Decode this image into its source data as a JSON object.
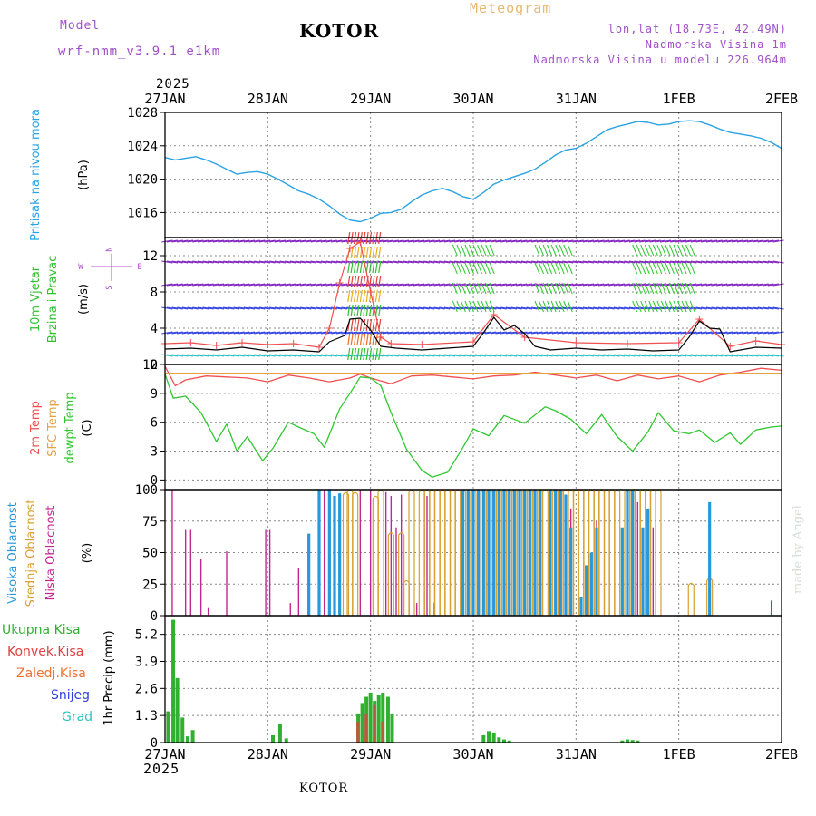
{
  "header": {
    "meteogram_title": "Meteogram",
    "model_label": "Model",
    "model_name": "wrf-nmm_v3.9.1 e1km",
    "station": "KOTOR",
    "lonlat": "lon,lat (18.73E, 42.49N)",
    "altitude": "Nadmorska Visina 1m",
    "model_altitude": "Nadmorska Visina u modelu 226.964m",
    "year_top": "2025",
    "year_bottom": "2025",
    "footer_station": "KOTOR",
    "credit": "made by Angel"
  },
  "colors": {
    "pressure": "#29a3e3",
    "temp2m": "#f05050",
    "sfc": "#e8a040",
    "dewpt": "#30c830",
    "high_cloud": "#2898d8",
    "mid_cloud": "#d8a030",
    "low_cloud": "#c02890",
    "total_precip": "#30b030",
    "conv_precip": "#e04040",
    "frozen": "#f07030",
    "snow": "#3040e0",
    "hail": "#30c0c0",
    "wind_compass": "#b050d0",
    "wind_speed_line": "#000000"
  },
  "chart_data": [
    {
      "type": "line",
      "panel": "pressure",
      "ylabel": [
        "Pritisak na nivou mora",
        "(hPa)"
      ],
      "xticks": [
        "27JAN",
        "28JAN",
        "29JAN",
        "30JAN",
        "31JAN",
        "1FEB",
        "2FEB"
      ],
      "ylim": [
        1013,
        1028
      ],
      "yticks": [
        1016,
        1020,
        1024,
        1028
      ],
      "grid": true,
      "series": [
        {
          "name": "Pritisak na nivou mora",
          "x": [
            0,
            0.1,
            0.2,
            0.3,
            0.4,
            0.5,
            0.6,
            0.7,
            0.8,
            0.9,
            1.0,
            1.1,
            1.2,
            1.3,
            1.4,
            1.5,
            1.6,
            1.7,
            1.8,
            1.9,
            2.0,
            2.1,
            2.2,
            2.3,
            2.4,
            2.5,
            2.6,
            2.7,
            2.8,
            2.9,
            3.0,
            3.1,
            3.2,
            3.3,
            3.4,
            3.5,
            3.6,
            3.7,
            3.8,
            3.9,
            4.0,
            4.1,
            4.2,
            4.3,
            4.4,
            4.5,
            4.6,
            4.7,
            4.8,
            4.9,
            5.0,
            5.1,
            5.2,
            5.3,
            5.4,
            5.5,
            5.6,
            5.7,
            5.8,
            5.9,
            6.0
          ],
          "y": [
            1022.6,
            1022.3,
            1022.5,
            1022.7,
            1022.3,
            1021.8,
            1021.2,
            1020.6,
            1020.8,
            1020.9,
            1020.6,
            1020.0,
            1019.3,
            1018.6,
            1018.2,
            1017.6,
            1016.8,
            1015.8,
            1015.1,
            1014.9,
            1015.3,
            1015.9,
            1016.0,
            1016.4,
            1017.3,
            1018.1,
            1018.6,
            1018.9,
            1018.5,
            1017.9,
            1017.6,
            1018.4,
            1019.4,
            1019.9,
            1020.3,
            1020.7,
            1021.2,
            1022.0,
            1022.9,
            1023.5,
            1023.7,
            1024.3,
            1025.1,
            1025.9,
            1026.3,
            1026.6,
            1026.9,
            1026.8,
            1026.5,
            1026.6,
            1026.9,
            1027.0,
            1026.9,
            1026.5,
            1026.0,
            1025.6,
            1025.4,
            1025.2,
            1024.9,
            1024.4,
            1023.7
          ]
        }
      ]
    },
    {
      "type": "line",
      "panel": "wind",
      "ylabel": [
        "10m Vjetar",
        "Brzina i Pravac",
        "(m/s)"
      ],
      "compass": {
        "north": "N",
        "south": "S",
        "west": "W",
        "east": "E"
      },
      "ylim": [
        0,
        14
      ],
      "yticks": [
        0,
        4,
        8,
        12
      ],
      "grid": true,
      "arrow_rows_y": [
        1.0,
        3.5,
        6.2,
        8.8,
        11.3,
        13.6
      ],
      "series": [
        {
          "name": "wind speed",
          "x": [
            0,
            0.25,
            0.5,
            0.75,
            1.0,
            1.25,
            1.5,
            1.6,
            1.75,
            1.8,
            1.9,
            2.0,
            2.1,
            2.25,
            2.5,
            2.75,
            3.0,
            3.1,
            3.2,
            3.3,
            3.4,
            3.5,
            3.6,
            3.75,
            4.0,
            4.25,
            4.5,
            4.75,
            5.0,
            5.1,
            5.2,
            5.3,
            5.4,
            5.5,
            5.6,
            5.75,
            6.0
          ],
          "y": [
            1.7,
            1.8,
            1.6,
            1.9,
            1.5,
            1.6,
            1.4,
            2.5,
            3.2,
            5.0,
            5.1,
            3.8,
            2.0,
            1.8,
            1.6,
            1.8,
            2.0,
            3.5,
            5.2,
            3.8,
            4.3,
            3.4,
            2.0,
            1.6,
            1.8,
            1.6,
            1.7,
            1.5,
            1.6,
            3.0,
            4.8,
            4.0,
            3.9,
            1.4,
            1.6,
            1.9,
            1.8
          ]
        },
        {
          "name": "gusts",
          "x": [
            0,
            0.25,
            0.5,
            0.75,
            1.0,
            1.25,
            1.5,
            1.6,
            1.7,
            1.8,
            1.9,
            2.0,
            2.1,
            2.2,
            2.5,
            3.0,
            3.2,
            3.5,
            4.0,
            4.5,
            5.0,
            5.2,
            5.5,
            5.75,
            6.0
          ],
          "y": [
            2.3,
            2.4,
            2.1,
            2.4,
            2.2,
            2.3,
            1.9,
            4.0,
            9.0,
            12.8,
            13.5,
            8.0,
            3.0,
            2.3,
            2.2,
            2.5,
            5.5,
            3.0,
            2.4,
            2.3,
            2.4,
            5.0,
            2.0,
            2.6,
            2.2
          ]
        }
      ]
    },
    {
      "type": "line",
      "panel": "temperature",
      "ylabel": [
        "2m Temp",
        "SFC Temp",
        "dewpt Temp",
        "(C)"
      ],
      "ylim": [
        -1,
        12
      ],
      "yticks": [
        0,
        3,
        6,
        9,
        12
      ],
      "grid": true,
      "series": [
        {
          "name": "2m Temp",
          "x": [
            0,
            0.1,
            0.2,
            0.4,
            0.6,
            0.8,
            1.0,
            1.2,
            1.4,
            1.6,
            1.8,
            1.9,
            2.0,
            2.2,
            2.4,
            2.6,
            2.8,
            3.0,
            3.2,
            3.4,
            3.6,
            3.8,
            4.0,
            4.2,
            4.4,
            4.6,
            4.8,
            5.0,
            5.2,
            5.4,
            5.6,
            5.8,
            6.0
          ],
          "y": [
            11.8,
            9.8,
            10.4,
            10.8,
            10.7,
            10.6,
            10.2,
            10.9,
            10.6,
            10.2,
            10.6,
            11.0,
            10.6,
            10.0,
            10.8,
            10.9,
            10.7,
            10.5,
            10.8,
            10.9,
            11.2,
            10.9,
            10.6,
            10.9,
            10.3,
            10.9,
            10.5,
            10.8,
            10.2,
            10.9,
            11.2,
            11.6,
            11.4
          ]
        },
        {
          "name": "SFC Temp",
          "x": [
            0,
            6
          ],
          "y": [
            11.1,
            11.1
          ]
        },
        {
          "name": "dewpt Temp",
          "x": [
            0,
            0.08,
            0.2,
            0.35,
            0.5,
            0.6,
            0.7,
            0.8,
            0.95,
            1.05,
            1.2,
            1.3,
            1.45,
            1.55,
            1.7,
            1.8,
            1.9,
            2.0,
            2.1,
            2.2,
            2.35,
            2.5,
            2.6,
            2.75,
            2.9,
            3.0,
            3.15,
            3.3,
            3.5,
            3.7,
            3.8,
            3.95,
            4.1,
            4.25,
            4.4,
            4.55,
            4.7,
            4.8,
            4.95,
            5.1,
            5.2,
            5.35,
            5.5,
            5.6,
            5.75,
            5.9,
            6.0
          ],
          "y": [
            11.0,
            8.5,
            8.7,
            7.0,
            4.0,
            5.8,
            3.0,
            4.5,
            2.0,
            3.3,
            6.0,
            5.5,
            4.8,
            3.4,
            7.4,
            9.0,
            10.7,
            10.6,
            9.8,
            7.0,
            3.2,
            1.0,
            0.3,
            0.8,
            3.4,
            5.3,
            4.6,
            6.7,
            5.9,
            7.6,
            7.2,
            6.3,
            4.8,
            6.8,
            4.5,
            3.0,
            5.0,
            7.0,
            5.1,
            4.8,
            5.2,
            3.9,
            4.9,
            3.7,
            5.2,
            5.5,
            5.6
          ]
        }
      ]
    },
    {
      "type": "bar",
      "panel": "clouds",
      "ylabel": [
        "Visoka Oblacnost",
        "Srednja Oblacnost",
        "Niska Oblacnost",
        "(%)"
      ],
      "ylim": [
        0,
        100
      ],
      "yticks": [
        0,
        25,
        50,
        75,
        100
      ],
      "grid": true,
      "series": [
        {
          "name": "Niska Oblacnost",
          "x": [
            0.07,
            0.2,
            0.25,
            0.35,
            0.42,
            0.6,
            0.98,
            1.02,
            1.22,
            1.3,
            1.5,
            1.55,
            1.9,
            2.0,
            2.15,
            2.2,
            2.25,
            2.3,
            2.45,
            2.55,
            2.62,
            2.95,
            3.05,
            3.8,
            3.95,
            4.2,
            4.5,
            4.6,
            4.75,
            5.9
          ],
          "y": [
            100,
            68,
            68,
            45,
            6,
            51,
            68,
            68,
            10,
            38,
            52,
            100,
            100,
            100,
            98,
            95,
            70,
            96,
            10,
            95,
            10,
            92,
            20,
            80,
            85,
            75,
            60,
            90,
            70,
            12
          ]
        },
        {
          "name": "Srednja Oblacnost",
          "x": [
            1.76,
            1.8,
            1.85,
            2.05,
            2.1,
            2.2,
            2.3,
            2.35,
            2.4,
            2.5,
            2.55,
            2.6,
            2.65,
            2.7,
            2.75,
            2.8,
            2.85,
            2.9,
            3.0,
            3.1,
            3.15,
            3.2,
            3.25,
            3.3,
            3.35,
            3.4,
            3.45,
            3.5,
            3.55,
            3.6,
            3.65,
            3.7,
            3.8,
            3.85,
            3.9,
            3.95,
            4.0,
            4.05,
            4.1,
            4.15,
            4.2,
            4.25,
            4.3,
            4.35,
            4.4,
            4.5,
            4.55,
            4.6,
            4.65,
            4.7,
            4.75,
            4.8,
            5.12,
            5.3
          ],
          "y": [
            98,
            100,
            98,
            95,
            100,
            66,
            66,
            28,
            100,
            100,
            100,
            100,
            100,
            100,
            100,
            100,
            100,
            100,
            100,
            100,
            100,
            100,
            100,
            100,
            100,
            100,
            100,
            100,
            100,
            100,
            100,
            100,
            100,
            100,
            100,
            100,
            100,
            100,
            100,
            100,
            100,
            100,
            100,
            100,
            100,
            100,
            100,
            100,
            100,
            100,
            100,
            100,
            26,
            30
          ]
        },
        {
          "name": "Visoka Oblacnost",
          "x": [
            1.4,
            1.5,
            1.6,
            1.65,
            1.7,
            2.9,
            2.95,
            3.0,
            3.05,
            3.1,
            3.15,
            3.2,
            3.25,
            3.3,
            3.35,
            3.4,
            3.45,
            3.5,
            3.55,
            3.6,
            3.65,
            3.75,
            3.8,
            3.85,
            3.9,
            3.95,
            4.05,
            4.1,
            4.15,
            4.2,
            4.45,
            4.5,
            4.55,
            4.65,
            4.7,
            5.3
          ],
          "y": [
            65,
            100,
            100,
            95,
            97,
            100,
            100,
            100,
            100,
            100,
            100,
            100,
            100,
            100,
            100,
            100,
            100,
            100,
            100,
            100,
            100,
            100,
            100,
            100,
            96,
            70,
            15,
            40,
            50,
            70,
            70,
            100,
            100,
            70,
            85,
            90
          ]
        }
      ]
    },
    {
      "type": "bar",
      "panel": "precip",
      "ylabel": [
        "1hr Precip (mm)"
      ],
      "legend": [
        "Ukupna Kisa",
        "Konvek.Kisa",
        "Zaledj.Kisa",
        "Snijeg",
        "Grad"
      ],
      "ylim": [
        0,
        6.1
      ],
      "yticks": [
        0,
        1.3,
        2.6,
        3.9,
        5.2
      ],
      "grid": true,
      "series": [
        {
          "name": "Ukupna Kisa",
          "x": [
            0.03,
            0.08,
            0.12,
            0.17,
            0.22,
            0.27,
            1.05,
            1.12,
            1.18,
            1.88,
            1.92,
            1.96,
            2.0,
            2.04,
            2.08,
            2.12,
            2.17,
            2.21,
            3.1,
            3.15,
            3.2,
            3.25,
            3.3,
            3.35,
            4.45,
            4.5,
            4.55,
            4.6
          ],
          "y": [
            1.5,
            5.9,
            3.1,
            1.2,
            0.3,
            0.6,
            0.35,
            0.9,
            0.2,
            1.4,
            1.9,
            2.2,
            2.4,
            2.0,
            2.3,
            2.4,
            2.2,
            1.4,
            0.35,
            0.55,
            0.45,
            0.25,
            0.15,
            0.1,
            0.1,
            0.15,
            0.12,
            0.1
          ]
        },
        {
          "name": "Konvek.Kisa",
          "x": [
            1.88,
            1.96,
            2.04,
            2.12
          ],
          "y": [
            1.0,
            1.4,
            1.8,
            1.0
          ]
        }
      ]
    }
  ]
}
